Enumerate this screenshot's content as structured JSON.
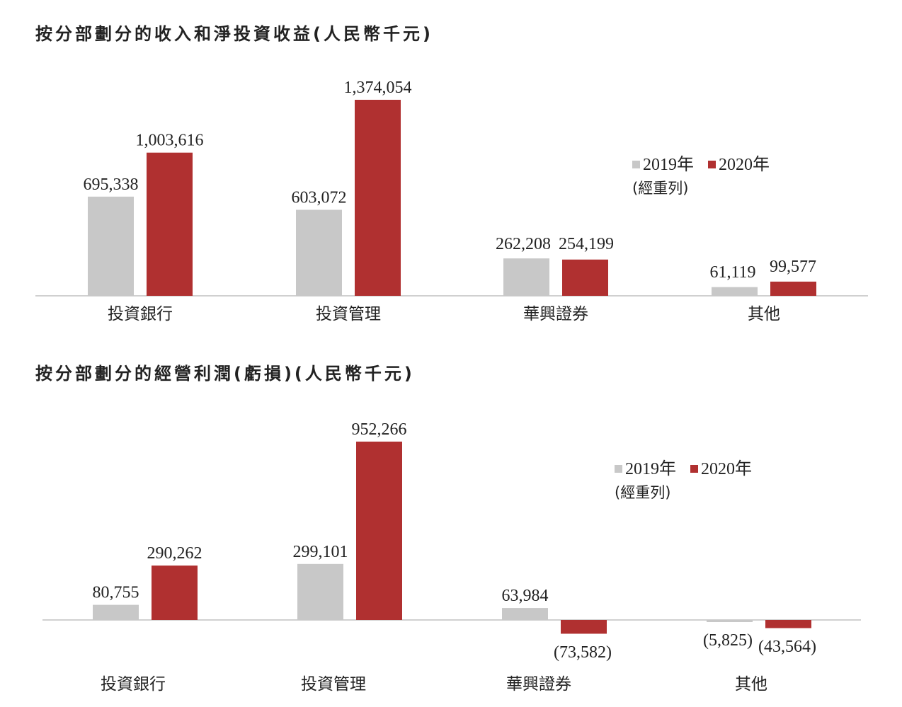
{
  "colors": {
    "y2019": "#c8c8c8",
    "y2020": "#b03030",
    "axis": "#d0d0d0"
  },
  "chart_data": [
    {
      "type": "bar",
      "title": "按分部劃分的收入和淨投資收益(人民幣千元)",
      "categories": [
        "投資銀行",
        "投資管理",
        "華興證券",
        "其他"
      ],
      "series": [
        {
          "name": "2019年",
          "values": [
            695338,
            603072,
            262208,
            61119
          ],
          "labels": [
            "695,338",
            "603,072",
            "262,208",
            "61,119"
          ]
        },
        {
          "name": "2020年",
          "values": [
            1003616,
            1374054,
            254199,
            99577
          ],
          "labels": [
            "1,003,616",
            "1,374,054",
            "254,199",
            "99,577"
          ]
        }
      ],
      "legend_note": "(經重列)",
      "legend_position": "right",
      "ylim": [
        0,
        1400000
      ],
      "grid": false
    },
    {
      "type": "bar",
      "title": "按分部劃分的經營利潤(虧損)(人民幣千元)",
      "categories": [
        "投資銀行",
        "投資管理",
        "華興證券",
        "其他"
      ],
      "series": [
        {
          "name": "2019年",
          "values": [
            80755,
            299101,
            63984,
            -5825
          ],
          "labels": [
            "80,755",
            "299,101",
            "63,984",
            "(5,825)"
          ]
        },
        {
          "name": "2020年",
          "values": [
            290262,
            952266,
            -73582,
            -43564
          ],
          "labels": [
            "290,262",
            "952,266",
            "(73,582)",
            "(43,564)"
          ]
        }
      ],
      "legend_note": "(經重列)",
      "legend_position": "right",
      "ylim": [
        -80000,
        1000000
      ],
      "grid": false
    }
  ]
}
